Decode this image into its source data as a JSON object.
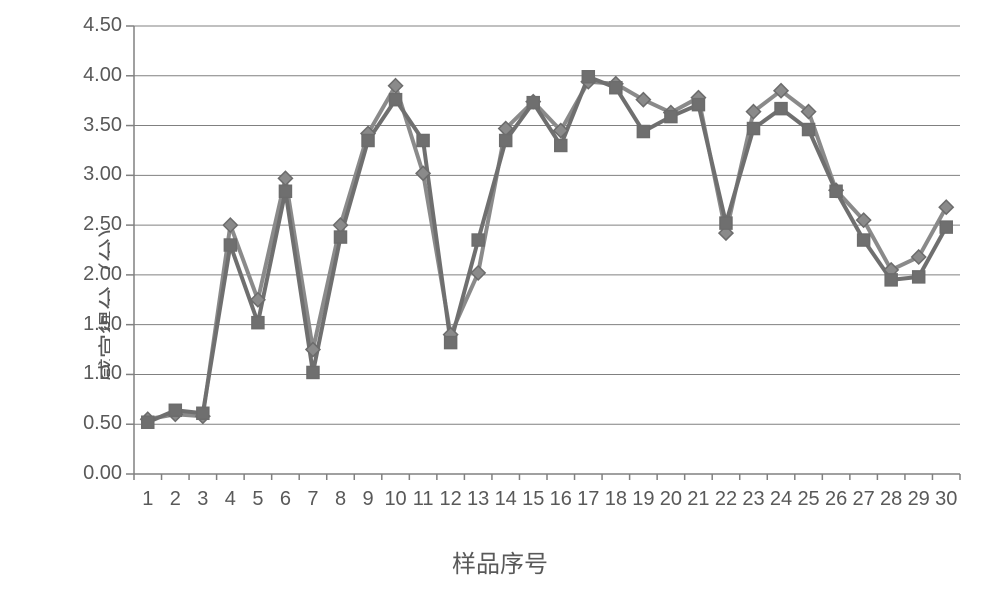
{
  "chart": {
    "type": "line",
    "background_color": "#ffffff",
    "grid_color": "#808080",
    "axis_color": "#808080",
    "tick_color": "#808080",
    "line_width_grid": 1,
    "line_width_axis": 1.5,
    "line_width_series": 4,
    "marker_size": 14,
    "marker_stroke": "#6c6c6c",
    "marker_stroke_width": 1.5,
    "y_axis": {
      "title": "感官得分（分）",
      "title_fontsize": 24,
      "label_fontsize": 20,
      "min": 0.0,
      "max": 4.5,
      "tick_step": 0.5,
      "tick_labels": [
        "0.00",
        "0.50",
        "1.00",
        "1.50",
        "2.00",
        "2.50",
        "3.00",
        "3.50",
        "4.00",
        "4.50"
      ],
      "decimals": 2
    },
    "x_axis": {
      "title": "样品序号",
      "title_fontsize": 24,
      "label_fontsize": 20,
      "categories": [
        "1",
        "2",
        "3",
        "4",
        "5",
        "6",
        "7",
        "8",
        "9",
        "10",
        "11",
        "12",
        "13",
        "14",
        "15",
        "16",
        "17",
        "18",
        "19",
        "20",
        "21",
        "22",
        "23",
        "24",
        "25",
        "26",
        "27",
        "28",
        "29",
        "30"
      ]
    },
    "series": [
      {
        "name": "series-diamond",
        "marker": "diamond",
        "color": "#8a8a8a",
        "marker_fill": "#8a8a8a",
        "values": [
          0.55,
          0.6,
          0.58,
          2.5,
          1.75,
          2.97,
          1.25,
          2.5,
          3.42,
          3.9,
          3.02,
          1.4,
          2.02,
          3.47,
          3.74,
          3.45,
          3.94,
          3.92,
          3.76,
          3.63,
          3.78,
          2.42,
          3.64,
          3.85,
          3.64,
          2.85,
          2.55,
          2.05,
          2.18,
          2.68
        ]
      },
      {
        "name": "series-square",
        "marker": "square",
        "color": "#6f6f6f",
        "marker_fill": "#6f6f6f",
        "values": [
          0.52,
          0.64,
          0.61,
          2.3,
          1.52,
          2.84,
          1.02,
          2.38,
          3.35,
          3.76,
          3.35,
          1.32,
          2.35,
          3.35,
          3.73,
          3.3,
          3.99,
          3.88,
          3.44,
          3.59,
          3.71,
          2.52,
          3.47,
          3.67,
          3.46,
          2.84,
          2.35,
          1.95,
          1.98,
          2.48
        ]
      }
    ]
  }
}
